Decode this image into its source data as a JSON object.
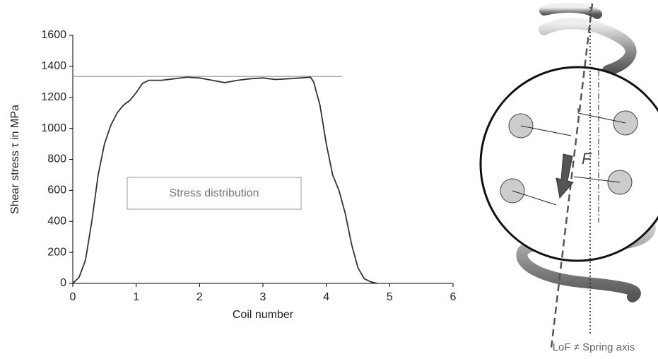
{
  "chart_data": {
    "type": "line",
    "x_label": "Coil number",
    "y_label": "Shear stress τ in MPa",
    "x": [
      0,
      0.1,
      0.2,
      0.3,
      0.4,
      0.5,
      0.6,
      0.7,
      0.8,
      0.9,
      1.0,
      1.1,
      1.2,
      1.4,
      1.6,
      1.8,
      2.0,
      2.2,
      2.4,
      2.6,
      2.8,
      3.0,
      3.2,
      3.4,
      3.6,
      3.75,
      3.8,
      3.9,
      4.0,
      4.1,
      4.2,
      4.3,
      4.4,
      4.5,
      4.6,
      4.7,
      4.8
    ],
    "series": [
      {
        "name": "Stress distribution",
        "color": "#333333",
        "values": [
          0,
          40,
          150,
          400,
          700,
          900,
          1020,
          1100,
          1150,
          1180,
          1230,
          1290,
          1310,
          1310,
          1320,
          1330,
          1325,
          1310,
          1295,
          1310,
          1320,
          1325,
          1315,
          1320,
          1325,
          1330,
          1300,
          1150,
          900,
          700,
          600,
          450,
          250,
          100,
          30,
          10,
          0
        ]
      }
    ],
    "reference_line": {
      "y": 1335,
      "x_end": 4.25,
      "color": "#999999"
    },
    "xlim": [
      0,
      6
    ],
    "xticks": [
      0,
      1,
      2,
      3,
      4,
      5,
      6
    ],
    "ylim": [
      0,
      1600
    ],
    "yticks": [
      0,
      200,
      400,
      600,
      800,
      1000,
      1200,
      1400,
      1600
    ],
    "grid": false,
    "legend": "center-left"
  },
  "diagram": {
    "force_label": "F",
    "caption": "LoF ≠ Spring axis"
  }
}
